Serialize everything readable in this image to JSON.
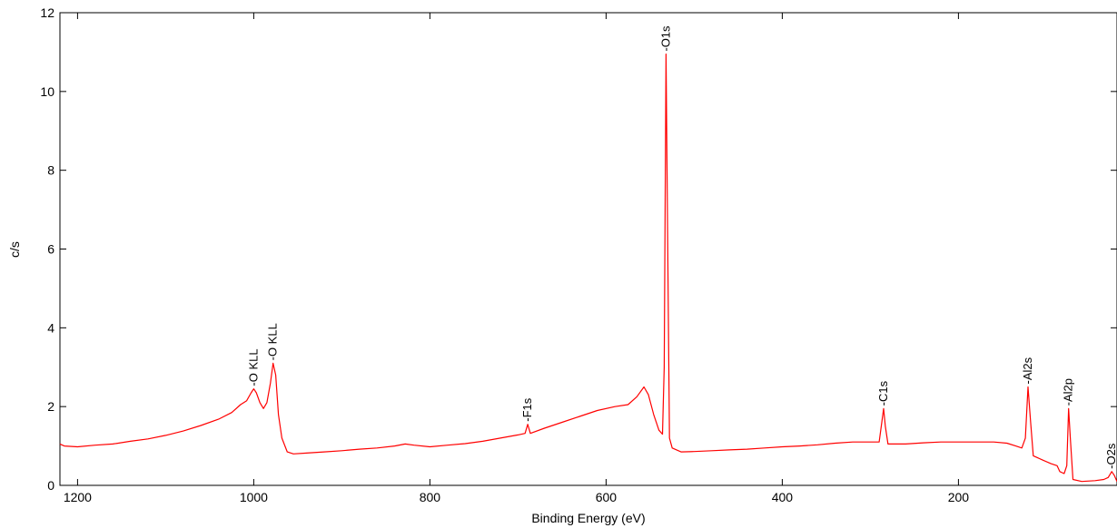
{
  "chart_data": {
    "type": "line",
    "title": "",
    "xlabel": "Binding Energy (eV)",
    "ylabel": "c/s",
    "xlim": [
      1220,
      20
    ],
    "ylim": [
      0,
      12
    ],
    "x_reversed": true,
    "grid": false,
    "x_ticks": [
      1200,
      1000,
      800,
      600,
      400,
      200
    ],
    "y_ticks": [
      0,
      2,
      4,
      6,
      8,
      10,
      12
    ],
    "series": [
      {
        "color": "#ff0000",
        "points": [
          [
            1220,
            1.05
          ],
          [
            1215,
            1.0
          ],
          [
            1200,
            0.98
          ],
          [
            1180,
            1.02
          ],
          [
            1160,
            1.05
          ],
          [
            1140,
            1.12
          ],
          [
            1120,
            1.18
          ],
          [
            1100,
            1.27
          ],
          [
            1080,
            1.38
          ],
          [
            1060,
            1.52
          ],
          [
            1040,
            1.68
          ],
          [
            1025,
            1.85
          ],
          [
            1015,
            2.05
          ],
          [
            1008,
            2.15
          ],
          [
            1003,
            2.35
          ],
          [
            1000,
            2.45
          ],
          [
            997,
            2.35
          ],
          [
            993,
            2.1
          ],
          [
            989,
            1.95
          ],
          [
            985,
            2.1
          ],
          [
            981,
            2.6
          ],
          [
            978,
            3.1
          ],
          [
            975,
            2.8
          ],
          [
            972,
            1.8
          ],
          [
            968,
            1.2
          ],
          [
            962,
            0.85
          ],
          [
            955,
            0.8
          ],
          [
            940,
            0.82
          ],
          [
            920,
            0.85
          ],
          [
            900,
            0.88
          ],
          [
            880,
            0.92
          ],
          [
            860,
            0.95
          ],
          [
            840,
            1.0
          ],
          [
            828,
            1.05
          ],
          [
            818,
            1.02
          ],
          [
            800,
            0.98
          ],
          [
            780,
            1.02
          ],
          [
            760,
            1.06
          ],
          [
            740,
            1.12
          ],
          [
            720,
            1.2
          ],
          [
            700,
            1.28
          ],
          [
            692,
            1.32
          ],
          [
            689,
            1.55
          ],
          [
            686,
            1.32
          ],
          [
            670,
            1.45
          ],
          [
            650,
            1.6
          ],
          [
            630,
            1.75
          ],
          [
            610,
            1.9
          ],
          [
            590,
            2.0
          ],
          [
            575,
            2.05
          ],
          [
            565,
            2.25
          ],
          [
            557,
            2.5
          ],
          [
            552,
            2.3
          ],
          [
            546,
            1.8
          ],
          [
            540,
            1.4
          ],
          [
            536,
            1.3
          ],
          [
            534,
            3.0
          ],
          [
            532,
            10.95
          ],
          [
            530,
            6.0
          ],
          [
            528,
            1.2
          ],
          [
            525,
            0.95
          ],
          [
            515,
            0.85
          ],
          [
            500,
            0.86
          ],
          [
            480,
            0.88
          ],
          [
            460,
            0.9
          ],
          [
            440,
            0.92
          ],
          [
            420,
            0.95
          ],
          [
            400,
            0.98
          ],
          [
            380,
            1.0
          ],
          [
            360,
            1.03
          ],
          [
            340,
            1.07
          ],
          [
            320,
            1.1
          ],
          [
            300,
            1.1
          ],
          [
            290,
            1.1
          ],
          [
            287,
            1.6
          ],
          [
            285,
            1.95
          ],
          [
            283,
            1.5
          ],
          [
            280,
            1.05
          ],
          [
            260,
            1.05
          ],
          [
            240,
            1.08
          ],
          [
            220,
            1.1
          ],
          [
            200,
            1.1
          ],
          [
            180,
            1.1
          ],
          [
            160,
            1.1
          ],
          [
            145,
            1.07
          ],
          [
            135,
            1.0
          ],
          [
            128,
            0.95
          ],
          [
            124,
            1.2
          ],
          [
            121,
            2.5
          ],
          [
            118,
            1.6
          ],
          [
            115,
            0.75
          ],
          [
            105,
            0.65
          ],
          [
            95,
            0.55
          ],
          [
            88,
            0.5
          ],
          [
            85,
            0.35
          ],
          [
            80,
            0.3
          ],
          [
            77,
            0.5
          ],
          [
            75,
            1.95
          ],
          [
            73,
            1.2
          ],
          [
            70,
            0.15
          ],
          [
            60,
            0.1
          ],
          [
            45,
            0.12
          ],
          [
            35,
            0.15
          ],
          [
            30,
            0.2
          ],
          [
            26,
            0.35
          ],
          [
            23,
            0.25
          ],
          [
            20,
            0.1
          ]
        ]
      }
    ],
    "annotations": [
      {
        "text": "-O KLL",
        "x": 1000,
        "y": 2.45
      },
      {
        "text": "-O KLL",
        "x": 978,
        "y": 3.1
      },
      {
        "text": "-F1s",
        "x": 689,
        "y": 1.55
      },
      {
        "text": "-O1s",
        "x": 532,
        "y": 10.95
      },
      {
        "text": "-C1s",
        "x": 285,
        "y": 1.95
      },
      {
        "text": "-Al2s",
        "x": 121,
        "y": 2.5
      },
      {
        "text": "-Al2p",
        "x": 75,
        "y": 1.95
      },
      {
        "text": "-O2s",
        "x": 26,
        "y": 0.35
      }
    ]
  }
}
